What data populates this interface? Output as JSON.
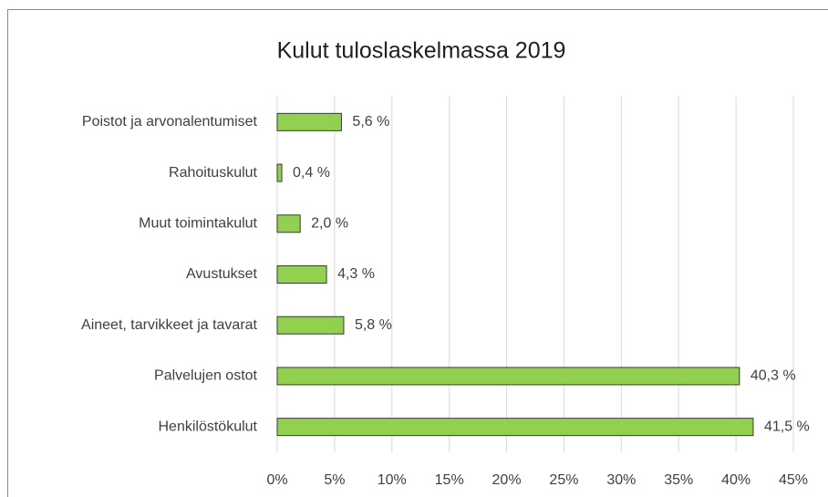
{
  "chart_data": {
    "type": "bar",
    "orientation": "horizontal",
    "title": "Kulut tuloslaskelmassa 2019",
    "categories": [
      "Poistot ja arvonalentumiset",
      "Rahoituskulut",
      "Muut toimintakulut",
      "Avustukset",
      "Aineet, tarvikkeet ja tavarat",
      "Palvelujen ostot",
      "Henkilöstökulut"
    ],
    "values": [
      5.6,
      0.4,
      2.0,
      4.3,
      5.8,
      40.3,
      41.5
    ],
    "value_labels": [
      "5,6 %",
      "0,4 %",
      "2,0 %",
      "4,3 %",
      "5,8 %",
      "40,3 %",
      "41,5 %"
    ],
    "color": "#92d050",
    "xlim": [
      0,
      45
    ],
    "xticks": [
      {
        "value": 0,
        "label": "0%"
      },
      {
        "value": 5,
        "label": "5%"
      },
      {
        "value": 10,
        "label": "10%"
      },
      {
        "value": 15,
        "label": "15%"
      },
      {
        "value": 20,
        "label": "20%"
      },
      {
        "value": 25,
        "label": "25%"
      },
      {
        "value": 30,
        "label": "30%"
      },
      {
        "value": 35,
        "label": "35%"
      },
      {
        "value": 40,
        "label": "40%"
      },
      {
        "value": 45,
        "label": "45%"
      }
    ],
    "grid": true
  }
}
